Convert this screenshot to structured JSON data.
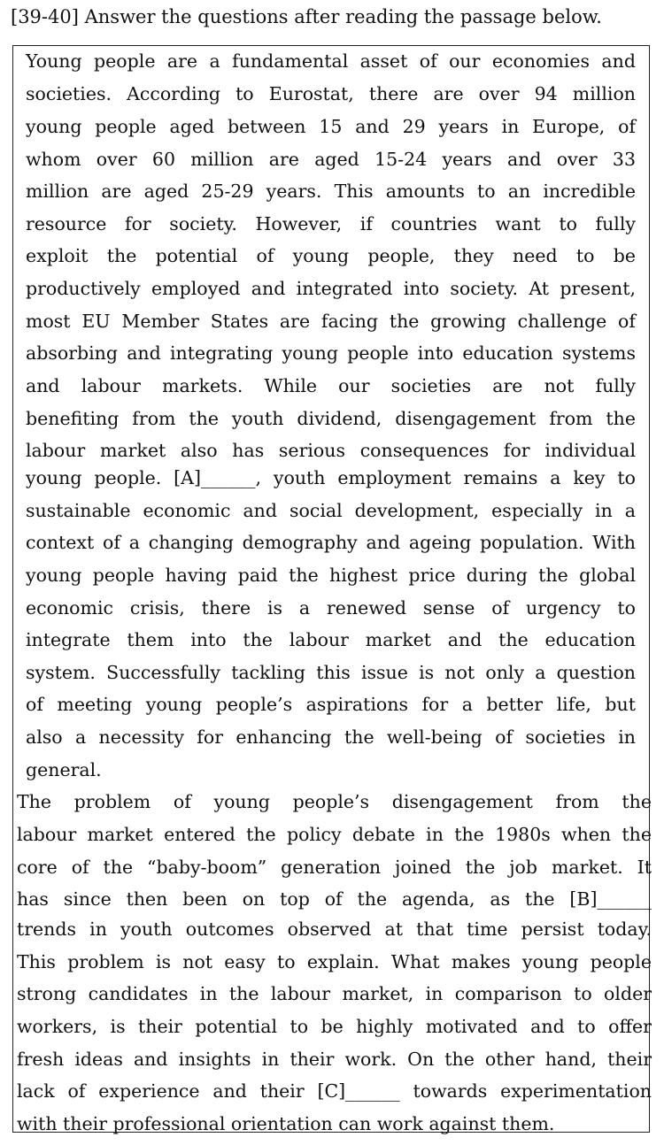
{
  "heading": "[39-40] Answer the questions after reading the passage below.",
  "passage": {
    "paragraph1": [
      " Young people are a fundamental asset of our economies and",
      "societies. According to Eurostat, there are over 94 million",
      "young people aged between 15 and 29 years in Europe, of",
      "whom over 60 million are aged 15-24 years and over 33",
      "million are aged 25-29 years. This amounts to an incredible",
      "resource for society. However, if countries want to fully",
      "exploit the potential of young people, they need to be",
      "productively employed and integrated into society. At present,",
      "most EU Member States are facing the growing challenge of",
      "absorbing and integrating young people into education systems",
      "and labour markets. While our societies are not fully",
      "benefiting from the youth dividend, disengagement from the",
      "labour market also has serious consequences for individual",
      "young people. [A]______, youth employment remains a key to",
      "sustainable economic and social development, especially in a",
      "context of a changing demography and ageing population. With",
      "young people having paid the highest price during the global",
      "economic crisis, there is a renewed sense of urgency to",
      "integrate them into the labour market and the education",
      "system. Successfully tackling this issue is not only a question",
      "of meeting young people’s aspirations for a better life, but",
      "also a necessity for enhancing the well-being of societies in",
      "general."
    ],
    "paragraph2": [
      " The problem of young people’s disengagement from the",
      "labour market entered the policy debate in the 1980s when the",
      "core of the “baby-boom” generation joined the job market. It",
      "has since then been on top of the agenda, as the [B]______",
      "trends in youth outcomes observed at that time persist today.",
      "This problem is not easy to explain. What makes young people",
      "strong candidates in the labour market, in comparison to older",
      "workers, is their potential to be highly motivated and to offer",
      "fresh ideas and insights in their work. On the other hand, their",
      "lack of experience and their [C]______ towards experimentation",
      "with their professional orientation can work against them."
    ]
  }
}
